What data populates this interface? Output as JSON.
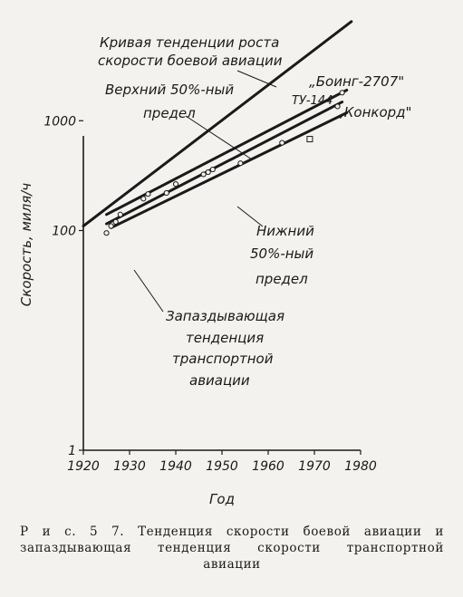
{
  "chart_data": {
    "type": "line",
    "title": "",
    "xlabel": "Год",
    "ylabel": "Скорость, миля/ч",
    "y_scale": "log",
    "xlim": [
      1920,
      1980
    ],
    "ylim": [
      1,
      10000
    ],
    "x_ticks": [
      "1920",
      "1930",
      "1940",
      "1950",
      "1960",
      "1970",
      "1980"
    ],
    "y_ticks": [
      {
        "value": 1,
        "label": "1"
      },
      {
        "value": 100,
        "label": "100"
      },
      {
        "value": 1000,
        "label": "1000"
      }
    ],
    "grid": false,
    "series": [
      {
        "key": "combat",
        "x": [
          1920,
          1978
        ],
        "y": [
          110,
          8000
        ]
      },
      {
        "key": "upper",
        "x": [
          1925,
          1977
        ],
        "y": [
          140,
          1900
        ]
      },
      {
        "key": "lower",
        "x": [
          1926,
          1977
        ],
        "y": [
          106,
          1180
        ]
      },
      {
        "key": "transport_trend",
        "x": [
          1925,
          1976
        ],
        "y": [
          115,
          1480
        ]
      }
    ],
    "points": [
      {
        "x": 1925,
        "y": 95
      },
      {
        "x": 1926,
        "y": 110
      },
      {
        "x": 1927,
        "y": 120
      },
      {
        "x": 1928,
        "y": 140
      },
      {
        "x": 1933,
        "y": 195
      },
      {
        "x": 1934,
        "y": 215
      },
      {
        "x": 1938,
        "y": 220
      },
      {
        "x": 1940,
        "y": 265
      },
      {
        "x": 1946,
        "y": 325
      },
      {
        "x": 1947,
        "y": 340
      },
      {
        "x": 1948,
        "y": 360
      },
      {
        "x": 1954,
        "y": 410
      },
      {
        "x": 1963,
        "y": 630
      },
      {
        "x": 1976,
        "y": 1800
      },
      {
        "x": 1975,
        "y": 1350
      }
    ],
    "square_points": [
      {
        "x": 1969,
        "y": 680
      }
    ],
    "annotations": {
      "combat_1": "Кривая тенденции роста",
      "combat_2": "скорости боевой авиации",
      "upper_1": "Верхний 50%-ный",
      "upper_2": "предел",
      "boeing": "„Боинг-2707\"",
      "tu144": "ТУ-144",
      "concorde": "„Конкорд\"",
      "lower_1": "Нижний",
      "lower_2": "50%-ный",
      "lower_3": "предел",
      "transport_1": "Запаздывающая",
      "transport_2": "тенденция",
      "transport_3": "транспортной",
      "transport_4": "авиации"
    }
  },
  "caption": {
    "line1": "Р и с.   5 7.   Тенденция  скорости  боевой  авиации  и",
    "line2": "запаздывающая   тенденция   скорости   транспортной",
    "line3": "авиации"
  }
}
